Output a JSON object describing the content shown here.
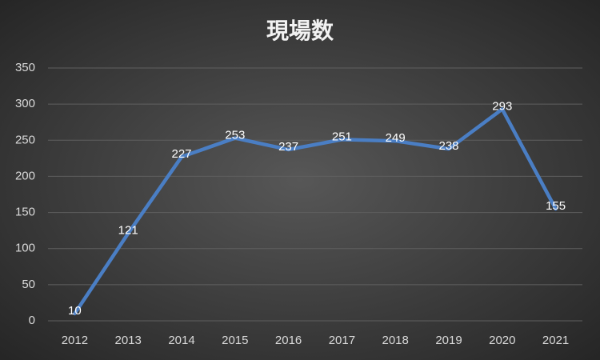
{
  "chart_data": {
    "type": "line",
    "title": "現場数",
    "categories": [
      "2012",
      "2013",
      "2014",
      "2015",
      "2016",
      "2017",
      "2018",
      "2019",
      "2020",
      "2021"
    ],
    "values": [
      10,
      121,
      227,
      253,
      237,
      251,
      249,
      238,
      293,
      155
    ],
    "color": "#4a7ec4",
    "ylim": [
      0,
      350
    ],
    "yticks": [
      0,
      50,
      100,
      150,
      200,
      250,
      300,
      350
    ],
    "grid": true
  }
}
